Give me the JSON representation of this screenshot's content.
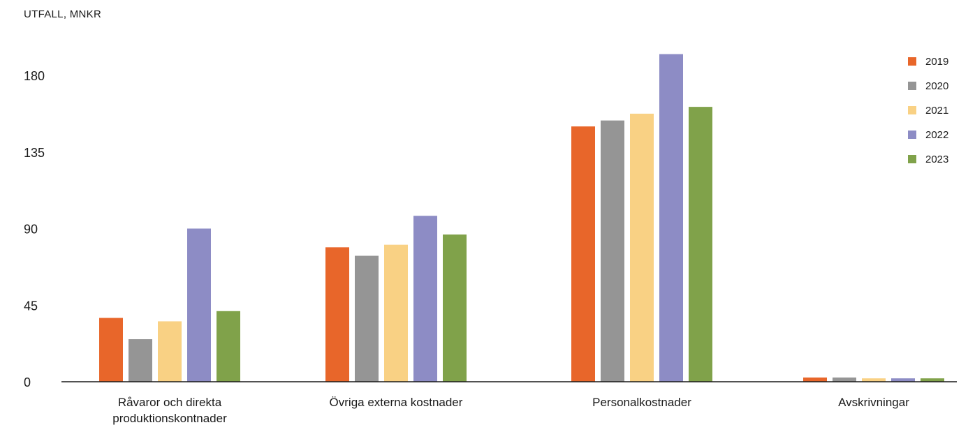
{
  "chart_data": {
    "type": "bar",
    "ylabel": "UTFALL, MNKR",
    "categories": [
      "Råvaror och direkta produktionskontnader",
      "Övriga externa kostnader",
      "Personalkostnader",
      "Avskrivningar"
    ],
    "series": [
      {
        "name": "2019",
        "color": "#e8662a",
        "values": [
          37.5,
          79,
          150,
          2.5
        ]
      },
      {
        "name": "2020",
        "color": "#959595",
        "values": [
          25,
          74,
          153.5,
          2.5
        ]
      },
      {
        "name": "2021",
        "color": "#f9d184",
        "values": [
          35.5,
          80.5,
          157.5,
          2
        ]
      },
      {
        "name": "2022",
        "color": "#8d8cc5",
        "values": [
          90,
          97.5,
          192.5,
          2
        ]
      },
      {
        "name": "2023",
        "color": "#80a24a",
        "values": [
          41.5,
          86.5,
          161.5,
          2
        ]
      }
    ],
    "yticks": [
      0,
      45,
      90,
      135,
      180
    ],
    "ylim": [
      0,
      205
    ],
    "grid": false,
    "legend": "top-right"
  }
}
